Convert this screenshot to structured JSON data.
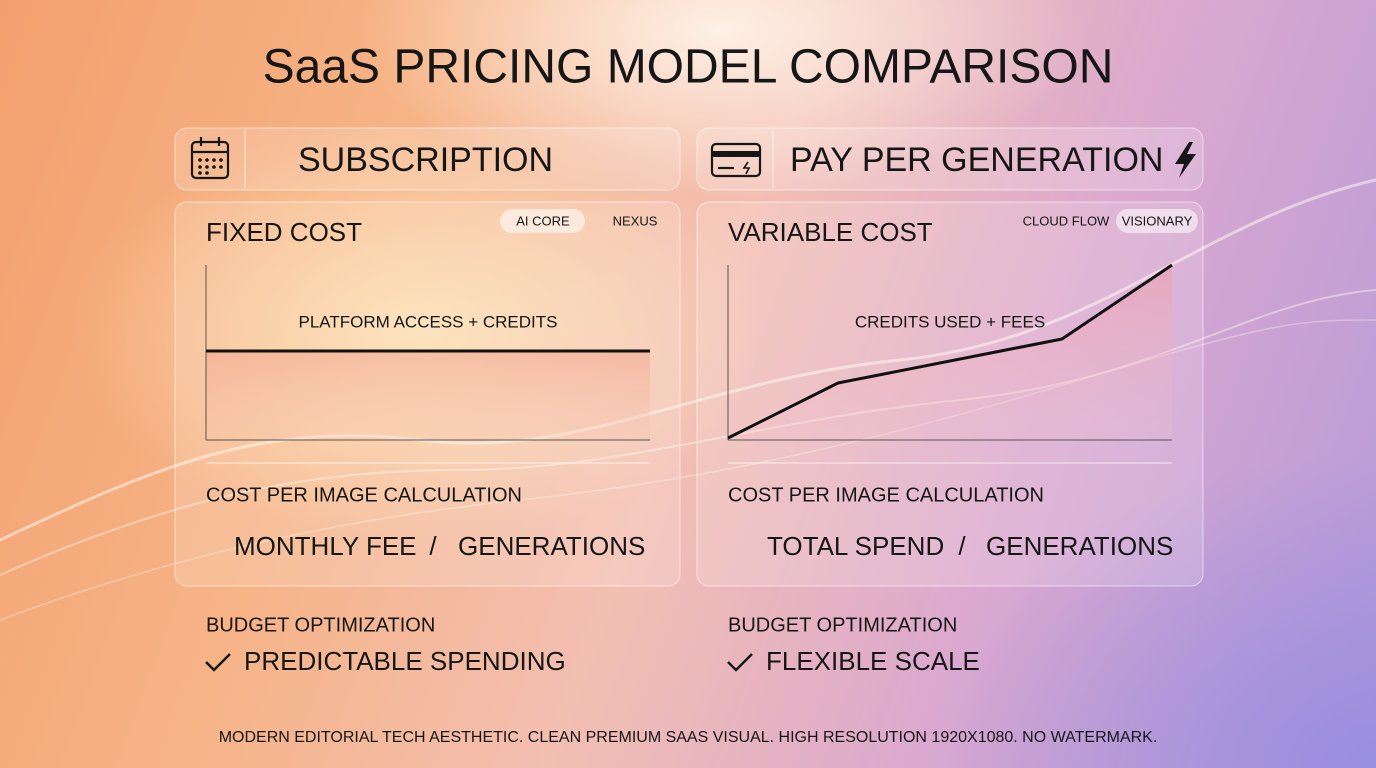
{
  "title": "SaaS PRICING MODEL COMPARISON",
  "panels": [
    {
      "header": "SUBSCRIPTION",
      "cost_label": "FIXED COST",
      "tags": [
        "AI CORE",
        "NEXUS"
      ],
      "chart_label": "PLATFORM ACCESS + CREDITS",
      "calc_label": "COST PER IMAGE CALCULATION",
      "formula": [
        "MONTHLY FEE",
        "/",
        "GENERATIONS"
      ],
      "budget_label": "BUDGET OPTIMIZATION",
      "benefit": "PREDICTABLE SPENDING"
    },
    {
      "header": "PAY PER GENERATION",
      "cost_label": "VARIABLE COST",
      "tags": [
        "CLOUD FLOW",
        "VISIONARY"
      ],
      "chart_label": "CREDITS USED + FEES",
      "calc_label": "COST PER IMAGE CALCULATION",
      "formula": [
        "TOTAL SPEND",
        "/",
        "GENERATIONS"
      ],
      "budget_label": "BUDGET OPTIMIZATION",
      "benefit": "FLEXIBLE SCALE"
    }
  ],
  "footer": "MODERN EDITORIAL TECH AESTHETIC. CLEAN PREMIUM SAAS VISUAL. HIGH RESOLUTION 1920X1080. NO WATERMARK."
}
